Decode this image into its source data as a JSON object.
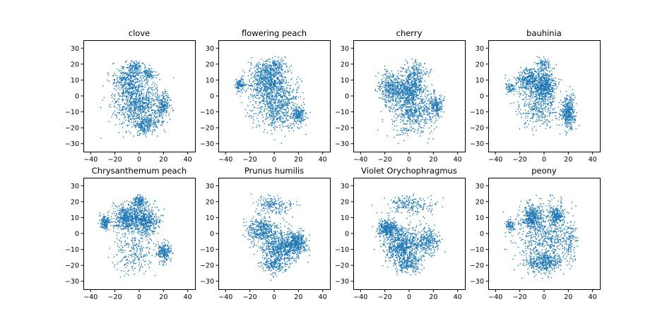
{
  "figure": {
    "background": "#ffffff",
    "point_color": "#1f77b4"
  },
  "chart_data": [
    {
      "type": "scatter",
      "title": "clove",
      "xlim": [
        -46,
        46
      ],
      "ylim": [
        -35,
        35
      ],
      "xticks": [
        -40,
        -20,
        0,
        20,
        40
      ],
      "yticks": [
        -30,
        -20,
        -10,
        0,
        10,
        20,
        30
      ],
      "n_points": 1800,
      "clusters": [
        {
          "cx": -8,
          "cy": 10,
          "sx": 6,
          "sy": 5,
          "w": 0.2
        },
        {
          "cx": -3,
          "cy": 18,
          "sx": 3,
          "sy": 2,
          "w": 0.05
        },
        {
          "cx": 8,
          "cy": 14,
          "sx": 3,
          "sy": 2,
          "w": 0.05
        },
        {
          "cx": 0,
          "cy": -5,
          "sx": 10,
          "sy": 7,
          "w": 0.45
        },
        {
          "cx": 20,
          "cy": -6,
          "sx": 3,
          "sy": 4,
          "w": 0.1
        },
        {
          "cx": 5,
          "cy": -18,
          "sx": 6,
          "sy": 3,
          "w": 0.15
        }
      ]
    },
    {
      "type": "scatter",
      "title": "flowering peach",
      "xlim": [
        -46,
        46
      ],
      "ylim": [
        -35,
        35
      ],
      "xticks": [
        -40,
        -20,
        0,
        20,
        40
      ],
      "yticks": [
        -30,
        -20,
        -10,
        0,
        10,
        20,
        30
      ],
      "n_points": 1800,
      "clusters": [
        {
          "cx": -28,
          "cy": 7,
          "sx": 2,
          "sy": 2,
          "w": 0.06
        },
        {
          "cx": -5,
          "cy": 10,
          "sx": 8,
          "sy": 6,
          "w": 0.35
        },
        {
          "cx": 2,
          "cy": -5,
          "sx": 10,
          "sy": 8,
          "w": 0.4
        },
        {
          "cx": 20,
          "cy": -12,
          "sx": 3,
          "sy": 3,
          "w": 0.1
        },
        {
          "cx": 0,
          "cy": 18,
          "sx": 5,
          "sy": 3,
          "w": 0.09
        }
      ]
    },
    {
      "type": "scatter",
      "title": "cherry",
      "xlim": [
        -46,
        46
      ],
      "ylim": [
        -35,
        35
      ],
      "xticks": [
        -40,
        -20,
        0,
        20,
        40
      ],
      "yticks": [
        -30,
        -20,
        -10,
        0,
        10,
        20,
        30
      ],
      "n_points": 1800,
      "clusters": [
        {
          "cx": -15,
          "cy": 5,
          "sx": 5,
          "sy": 5,
          "w": 0.2
        },
        {
          "cx": 0,
          "cy": 3,
          "sx": 6,
          "sy": 4,
          "w": 0.25
        },
        {
          "cx": 5,
          "cy": 14,
          "sx": 5,
          "sy": 4,
          "w": 0.12
        },
        {
          "cx": 5,
          "cy": -10,
          "sx": 10,
          "sy": 7,
          "w": 0.33
        },
        {
          "cx": 22,
          "cy": -6,
          "sx": 3,
          "sy": 3,
          "w": 0.1
        }
      ]
    },
    {
      "type": "scatter",
      "title": "bauhinia",
      "xlim": [
        -46,
        46
      ],
      "ylim": [
        -35,
        35
      ],
      "xticks": [
        -40,
        -20,
        0,
        20,
        40
      ],
      "yticks": [
        -30,
        -20,
        -10,
        0,
        10,
        20,
        30
      ],
      "n_points": 1800,
      "clusters": [
        {
          "cx": -12,
          "cy": 10,
          "sx": 6,
          "sy": 4,
          "w": 0.2
        },
        {
          "cx": 0,
          "cy": 6,
          "sx": 5,
          "sy": 5,
          "w": 0.35
        },
        {
          "cx": 20,
          "cy": -10,
          "sx": 3,
          "sy": 5,
          "w": 0.2
        },
        {
          "cx": -5,
          "cy": -8,
          "sx": 8,
          "sy": 6,
          "w": 0.17
        },
        {
          "cx": -28,
          "cy": 5,
          "sx": 2,
          "sy": 2,
          "w": 0.04
        },
        {
          "cx": 0,
          "cy": 20,
          "sx": 3,
          "sy": 2,
          "w": 0.04
        }
      ]
    },
    {
      "type": "scatter",
      "title": "Chrysanthemum peach",
      "xlim": [
        -46,
        46
      ],
      "ylim": [
        -35,
        35
      ],
      "xticks": [
        -40,
        -20,
        0,
        20,
        40
      ],
      "yticks": [
        -30,
        -20,
        -10,
        0,
        10,
        20,
        30
      ],
      "n_points": 1800,
      "clusters": [
        {
          "cx": -28,
          "cy": 7,
          "sx": 2,
          "sy": 2,
          "w": 0.08
        },
        {
          "cx": -10,
          "cy": 10,
          "sx": 6,
          "sy": 4,
          "w": 0.3
        },
        {
          "cx": 5,
          "cy": 8,
          "sx": 6,
          "sy": 5,
          "w": 0.3
        },
        {
          "cx": 20,
          "cy": -12,
          "sx": 3,
          "sy": 3,
          "w": 0.12
        },
        {
          "cx": -5,
          "cy": -12,
          "sx": 8,
          "sy": 6,
          "w": 0.12
        },
        {
          "cx": 0,
          "cy": 20,
          "sx": 3,
          "sy": 2,
          "w": 0.08
        }
      ]
    },
    {
      "type": "scatter",
      "title": "Prunus humilis",
      "xlim": [
        -46,
        46
      ],
      "ylim": [
        -35,
        35
      ],
      "xticks": [
        -40,
        -20,
        0,
        20,
        40
      ],
      "yticks": [
        -30,
        -20,
        -10,
        0,
        10,
        20,
        30
      ],
      "n_points": 1800,
      "clusters": [
        {
          "cx": -10,
          "cy": 2,
          "sx": 6,
          "sy": 4,
          "w": 0.2
        },
        {
          "cx": 8,
          "cy": -8,
          "sx": 9,
          "sy": 5,
          "w": 0.5
        },
        {
          "cx": 20,
          "cy": -5,
          "sx": 3,
          "sy": 3,
          "w": 0.1
        },
        {
          "cx": 0,
          "cy": -20,
          "sx": 5,
          "sy": 3,
          "w": 0.1
        },
        {
          "cx": 0,
          "cy": 18,
          "sx": 8,
          "sy": 3,
          "w": 0.1
        }
      ]
    },
    {
      "type": "scatter",
      "title": "Violet Orychophragmus",
      "xlim": [
        -46,
        46
      ],
      "ylim": [
        -35,
        35
      ],
      "xticks": [
        -40,
        -20,
        0,
        20,
        40
      ],
      "yticks": [
        -30,
        -20,
        -10,
        0,
        10,
        20,
        30
      ],
      "n_points": 1800,
      "clusters": [
        {
          "cx": -18,
          "cy": 3,
          "sx": 4,
          "sy": 3,
          "w": 0.2
        },
        {
          "cx": -5,
          "cy": -8,
          "sx": 8,
          "sy": 6,
          "w": 0.45
        },
        {
          "cx": 15,
          "cy": -5,
          "sx": 5,
          "sy": 4,
          "w": 0.15
        },
        {
          "cx": 0,
          "cy": 18,
          "sx": 9,
          "sy": 3,
          "w": 0.1
        },
        {
          "cx": 0,
          "cy": -20,
          "sx": 5,
          "sy": 3,
          "w": 0.1
        }
      ]
    },
    {
      "type": "scatter",
      "title": "peony",
      "xlim": [
        -46,
        46
      ],
      "ylim": [
        -35,
        35
      ],
      "xticks": [
        -40,
        -20,
        0,
        20,
        40
      ],
      "yticks": [
        -30,
        -20,
        -10,
        0,
        10,
        20,
        30
      ],
      "n_points": 1800,
      "clusters": [
        {
          "cx": -10,
          "cy": 10,
          "sx": 4,
          "sy": 4,
          "w": 0.2
        },
        {
          "cx": 10,
          "cy": 11,
          "sx": 3,
          "sy": 3,
          "w": 0.12
        },
        {
          "cx": 0,
          "cy": -18,
          "sx": 8,
          "sy": 3,
          "w": 0.22
        },
        {
          "cx": 0,
          "cy": 0,
          "sx": 12,
          "sy": 10,
          "w": 0.36
        },
        {
          "cx": -28,
          "cy": 5,
          "sx": 2,
          "sy": 2,
          "w": 0.04
        },
        {
          "cx": 22,
          "cy": -5,
          "sx": 3,
          "sy": 5,
          "w": 0.06
        }
      ]
    }
  ]
}
